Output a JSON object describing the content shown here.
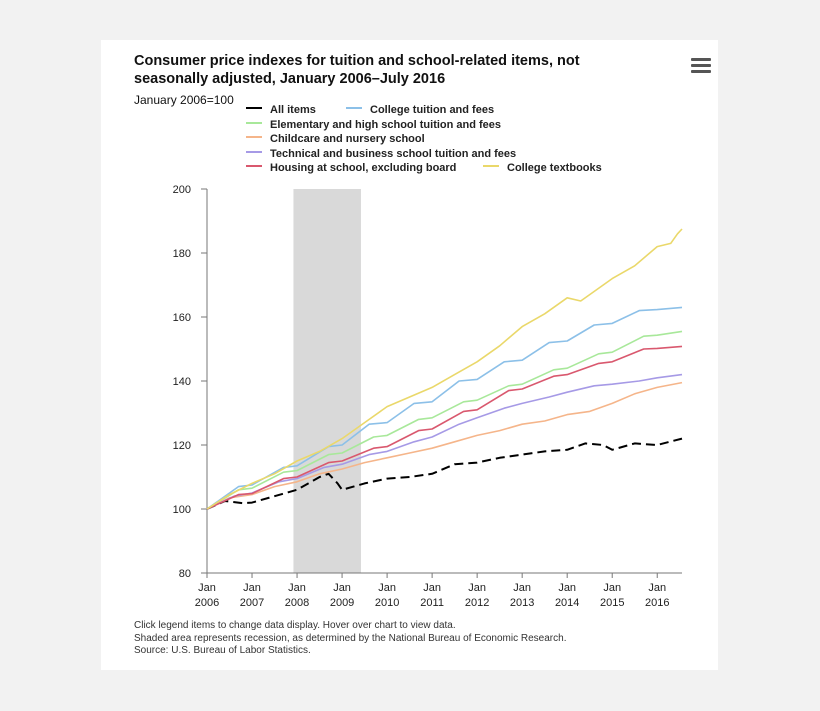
{
  "chart_data": {
    "type": "line",
    "title": "Consumer price indexes for tuition and school-related items, not seasonally adjusted, January 2006–July 2016",
    "subtitle": "January 2006=100",
    "xlabel": "",
    "ylabel": "",
    "ylim": [
      80,
      200
    ],
    "yticks": [
      80,
      100,
      120,
      140,
      160,
      180,
      200
    ],
    "xlim": [
      2006.0,
      2016.55
    ],
    "xticks": [
      {
        "month": "Jan",
        "year": "2006",
        "x": 2006
      },
      {
        "month": "Jan",
        "year": "2007",
        "x": 2007
      },
      {
        "month": "Jan",
        "year": "2008",
        "x": 2008
      },
      {
        "month": "Jan",
        "year": "2009",
        "x": 2009
      },
      {
        "month": "Jan",
        "year": "2010",
        "x": 2010
      },
      {
        "month": "Jan",
        "year": "2011",
        "x": 2011
      },
      {
        "month": "Jan",
        "year": "2012",
        "x": 2012
      },
      {
        "month": "Jan",
        "year": "2013",
        "x": 2013
      },
      {
        "month": "Jan",
        "year": "2014",
        "x": 2014
      },
      {
        "month": "Jan",
        "year": "2015",
        "x": 2015
      },
      {
        "month": "Jan",
        "year": "2016",
        "x": 2016
      }
    ],
    "recession": {
      "start": 2007.92,
      "end": 2009.42
    },
    "legend": [
      "All items",
      "College tuition and fees",
      "Elementary and high school tuition and fees",
      "Childcare and nursery school",
      "Technical and business school tuition and fees",
      "Housing at school, excluding board",
      "College textbooks"
    ],
    "series": [
      {
        "name": "All items",
        "color": "#000000",
        "dashed": true,
        "points": [
          [
            2006.0,
            100
          ],
          [
            2006.4,
            102.5
          ],
          [
            2006.8,
            101.8
          ],
          [
            2007.0,
            102
          ],
          [
            2007.5,
            104
          ],
          [
            2008.0,
            106
          ],
          [
            2008.5,
            110
          ],
          [
            2008.7,
            111
          ],
          [
            2008.9,
            108
          ],
          [
            2009.0,
            106
          ],
          [
            2009.5,
            108
          ],
          [
            2010.0,
            109.5
          ],
          [
            2010.5,
            110
          ],
          [
            2011.0,
            111
          ],
          [
            2011.5,
            114
          ],
          [
            2012.0,
            114.5
          ],
          [
            2012.5,
            116
          ],
          [
            2013.0,
            117
          ],
          [
            2013.5,
            118
          ],
          [
            2014.0,
            118.5
          ],
          [
            2014.4,
            120.5
          ],
          [
            2014.8,
            120
          ],
          [
            2015.0,
            118.5
          ],
          [
            2015.5,
            120.5
          ],
          [
            2016.0,
            120
          ],
          [
            2016.55,
            122
          ]
        ]
      },
      {
        "name": "College tuition and fees",
        "color": "#8cc0e8",
        "dashed": false,
        "points": [
          [
            2006.0,
            100
          ],
          [
            2006.7,
            107
          ],
          [
            2007.0,
            107.5
          ],
          [
            2007.7,
            113
          ],
          [
            2008.0,
            113.5
          ],
          [
            2008.7,
            119.5
          ],
          [
            2009.0,
            120
          ],
          [
            2009.6,
            126.5
          ],
          [
            2010.0,
            127
          ],
          [
            2010.6,
            133
          ],
          [
            2011.0,
            133.5
          ],
          [
            2011.6,
            140
          ],
          [
            2012.0,
            140.5
          ],
          [
            2012.6,
            146
          ],
          [
            2013.0,
            146.5
          ],
          [
            2013.6,
            152
          ],
          [
            2014.0,
            152.5
          ],
          [
            2014.6,
            157.5
          ],
          [
            2015.0,
            158
          ],
          [
            2015.6,
            162
          ],
          [
            2016.0,
            162.3
          ],
          [
            2016.55,
            163
          ]
        ]
      },
      {
        "name": "Elementary and high school tuition and fees",
        "color": "#a8e89a",
        "dashed": false,
        "points": [
          [
            2006.0,
            100
          ],
          [
            2006.7,
            106
          ],
          [
            2007.0,
            106.5
          ],
          [
            2007.7,
            111.5
          ],
          [
            2008.0,
            112
          ],
          [
            2008.7,
            117
          ],
          [
            2009.0,
            117.5
          ],
          [
            2009.7,
            122.5
          ],
          [
            2010.0,
            123
          ],
          [
            2010.7,
            128
          ],
          [
            2011.0,
            128.5
          ],
          [
            2011.7,
            133.5
          ],
          [
            2012.0,
            134
          ],
          [
            2012.7,
            138.5
          ],
          [
            2013.0,
            139
          ],
          [
            2013.7,
            143.5
          ],
          [
            2014.0,
            144
          ],
          [
            2014.7,
            148.5
          ],
          [
            2015.0,
            149
          ],
          [
            2015.7,
            154
          ],
          [
            2016.0,
            154.3
          ],
          [
            2016.55,
            155.5
          ]
        ]
      },
      {
        "name": "Childcare and nursery school",
        "color": "#f5b58a",
        "dashed": false,
        "points": [
          [
            2006.0,
            100
          ],
          [
            2006.5,
            103.5
          ],
          [
            2007.0,
            104.5
          ],
          [
            2007.5,
            107
          ],
          [
            2008.0,
            108.5
          ],
          [
            2008.5,
            111
          ],
          [
            2009.0,
            112.5
          ],
          [
            2009.5,
            114.5
          ],
          [
            2010.0,
            116
          ],
          [
            2010.5,
            117.5
          ],
          [
            2011.0,
            119
          ],
          [
            2011.5,
            121
          ],
          [
            2012.0,
            123
          ],
          [
            2012.5,
            124.5
          ],
          [
            2013.0,
            126.5
          ],
          [
            2013.5,
            127.5
          ],
          [
            2014.0,
            129.5
          ],
          [
            2014.5,
            130.5
          ],
          [
            2015.0,
            133
          ],
          [
            2015.5,
            136
          ],
          [
            2016.0,
            138
          ],
          [
            2016.55,
            139.5
          ]
        ]
      },
      {
        "name": "Technical and business school tuition and fees",
        "color": "#a69ae6",
        "dashed": false,
        "points": [
          [
            2006.0,
            100
          ],
          [
            2006.6,
            104
          ],
          [
            2007.0,
            105
          ],
          [
            2007.6,
            108.5
          ],
          [
            2008.0,
            109.5
          ],
          [
            2008.6,
            113
          ],
          [
            2009.0,
            114
          ],
          [
            2009.6,
            117
          ],
          [
            2010.0,
            118
          ],
          [
            2010.6,
            121
          ],
          [
            2011.0,
            122.5
          ],
          [
            2011.6,
            126.5
          ],
          [
            2012.0,
            128.5
          ],
          [
            2012.6,
            131.5
          ],
          [
            2013.0,
            133
          ],
          [
            2013.6,
            135
          ],
          [
            2014.0,
            136.5
          ],
          [
            2014.6,
            138.5
          ],
          [
            2015.0,
            139
          ],
          [
            2015.6,
            140
          ],
          [
            2016.0,
            141
          ],
          [
            2016.55,
            142
          ]
        ]
      },
      {
        "name": "Housing at school, excluding board",
        "color": "#d9586e",
        "dashed": false,
        "points": [
          [
            2006.0,
            100
          ],
          [
            2006.7,
            104.5
          ],
          [
            2007.0,
            104.8
          ],
          [
            2007.7,
            109.5
          ],
          [
            2008.0,
            110
          ],
          [
            2008.7,
            114.5
          ],
          [
            2009.0,
            115
          ],
          [
            2009.7,
            119
          ],
          [
            2010.0,
            119.5
          ],
          [
            2010.7,
            124.5
          ],
          [
            2011.0,
            125
          ],
          [
            2011.7,
            130.5
          ],
          [
            2012.0,
            131
          ],
          [
            2012.7,
            137
          ],
          [
            2013.0,
            137.5
          ],
          [
            2013.7,
            141.5
          ],
          [
            2014.0,
            142
          ],
          [
            2014.7,
            145.5
          ],
          [
            2015.0,
            146
          ],
          [
            2015.7,
            150
          ],
          [
            2016.0,
            150.2
          ],
          [
            2016.55,
            150.8
          ]
        ]
      },
      {
        "name": "College textbooks",
        "color": "#ead86a",
        "dashed": false,
        "points": [
          [
            2006.0,
            100
          ],
          [
            2006.5,
            104.5
          ],
          [
            2007.0,
            108
          ],
          [
            2007.5,
            111
          ],
          [
            2008.0,
            115
          ],
          [
            2008.5,
            118
          ],
          [
            2009.0,
            122
          ],
          [
            2009.5,
            127
          ],
          [
            2010.0,
            132
          ],
          [
            2010.5,
            135
          ],
          [
            2011.0,
            138
          ],
          [
            2011.5,
            142
          ],
          [
            2012.0,
            146
          ],
          [
            2012.5,
            151
          ],
          [
            2013.0,
            157
          ],
          [
            2013.5,
            161
          ],
          [
            2014.0,
            166
          ],
          [
            2014.3,
            165
          ],
          [
            2014.5,
            167
          ],
          [
            2015.0,
            172
          ],
          [
            2015.5,
            176
          ],
          [
            2016.0,
            182
          ],
          [
            2016.3,
            183
          ],
          [
            2016.45,
            186
          ],
          [
            2016.55,
            187.5
          ]
        ]
      }
    ]
  },
  "notes": {
    "line1": "Click legend items to change data display. Hover over chart to view data.",
    "line2": "Shaded area represents recession, as determined by the National Bureau of Economic Research.",
    "line3": "Source: U.S. Bureau of Labor Statistics."
  }
}
